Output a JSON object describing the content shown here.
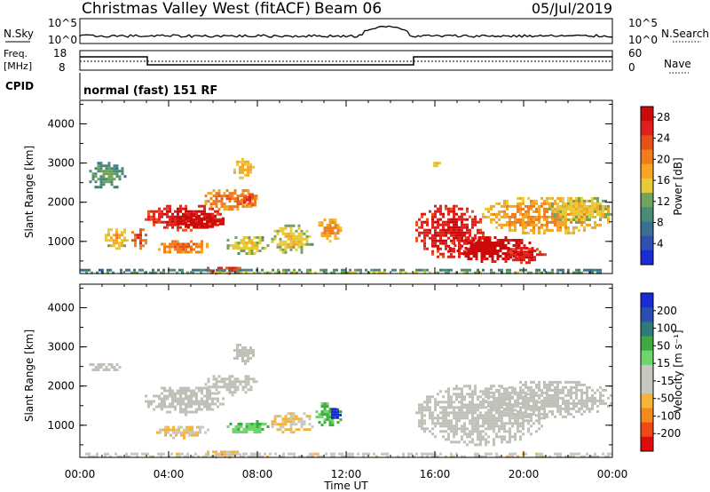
{
  "header": {
    "station": "Christmas Valley West (fitACF)",
    "beam": "Beam 06",
    "date": "05/Jul/2019"
  },
  "strips": {
    "nsky": {
      "label": "N.Sky",
      "ticks": [
        "10^5",
        "10^0"
      ]
    },
    "nsearch": {
      "label": "N.Search",
      "ticks": [
        "10^5",
        "10^0"
      ]
    },
    "freq": {
      "label_line1": "Freq.",
      "label_line2": "[MHz]",
      "ticks": [
        "18",
        "8"
      ]
    },
    "nave": {
      "label": "Nave",
      "ticks": [
        "60",
        "0"
      ]
    },
    "cpid": {
      "label": "CPID",
      "value": "normal (fast) 151 RF"
    }
  },
  "colors": {
    "power_scale": [
      "#1a2bd6",
      "#2f4fb3",
      "#3c6f94",
      "#4a8a78",
      "#6fa35e",
      "#e7c93c",
      "#f5a623",
      "#f07d1c",
      "#e8501a",
      "#e0201a",
      "#cc0a0a"
    ],
    "velocity_scale": [
      "#e00a0a",
      "#f04a14",
      "#f58a1a",
      "#f4b43a",
      "#c8c8c0",
      "#c8c8c0",
      "#6cd66c",
      "#3faa3f",
      "#2f7a7a",
      "#2b4fb0",
      "#1a2bd6"
    ],
    "ground_scatter": "#c0c0b8"
  },
  "chart_data": [
    {
      "type": "heatmap",
      "name": "power",
      "ylabel": "Slant Range [km]",
      "x_ticks": [
        "00:00",
        "04:00",
        "08:00",
        "12:00",
        "16:00",
        "20:00",
        "00:00"
      ],
      "y_ticks": [
        "1000",
        "2000",
        "3000",
        "4000"
      ],
      "xlim_hours": [
        0,
        24
      ],
      "ylim_km": [
        180,
        4600
      ],
      "colorbar": {
        "label": "Power [dB]",
        "ticks": [
          "4",
          "8",
          "12",
          "16",
          "20",
          "24",
          "28"
        ],
        "range": [
          0,
          30
        ]
      },
      "regions": [
        {
          "t0": 0.3,
          "t1": 2.0,
          "r0": 2350,
          "r1": 3100,
          "value": 8
        },
        {
          "t0": 1.0,
          "t1": 2.2,
          "r0": 800,
          "r1": 1400,
          "value": 14
        },
        {
          "t0": 2.2,
          "t1": 3.0,
          "r0": 850,
          "r1": 1400,
          "value": 20
        },
        {
          "t0": 2.8,
          "t1": 6.5,
          "r0": 1300,
          "r1": 2000,
          "value": 24
        },
        {
          "t0": 4.0,
          "t1": 6.6,
          "r0": 1350,
          "r1": 1750,
          "value": 28
        },
        {
          "t0": 3.4,
          "t1": 5.8,
          "r0": 700,
          "r1": 1100,
          "value": 18
        },
        {
          "t0": 5.5,
          "t1": 8.0,
          "r0": 1800,
          "r1": 2400,
          "value": 18
        },
        {
          "t0": 6.8,
          "t1": 7.8,
          "r0": 2600,
          "r1": 3200,
          "value": 14
        },
        {
          "t0": 7.0,
          "t1": 8.0,
          "r0": 1900,
          "r1": 2300,
          "value": 20
        },
        {
          "t0": 6.5,
          "t1": 8.5,
          "r0": 700,
          "r1": 1200,
          "value": 12
        },
        {
          "t0": 8.5,
          "t1": 10.5,
          "r0": 700,
          "r1": 1500,
          "value": 12
        },
        {
          "t0": 10.5,
          "t1": 11.8,
          "r0": 1000,
          "r1": 1650,
          "value": 16
        },
        {
          "t0": 5.6,
          "t1": 7.3,
          "r0": 200,
          "r1": 420,
          "value": 22
        },
        {
          "t0": 15.0,
          "t1": 18.2,
          "r0": 600,
          "r1": 2000,
          "value": 24
        },
        {
          "t0": 16.5,
          "t1": 20.5,
          "r0": 500,
          "r1": 1200,
          "value": 26
        },
        {
          "t0": 19.0,
          "t1": 21.0,
          "r0": 450,
          "r1": 900,
          "value": 24
        },
        {
          "t0": 18.0,
          "t1": 24.0,
          "r0": 1200,
          "r1": 2200,
          "value": 16
        },
        {
          "t0": 21.0,
          "t1": 24.0,
          "r0": 1500,
          "r1": 2200,
          "value": 12
        },
        {
          "t0": 15.8,
          "t1": 16.4,
          "r0": 2900,
          "r1": 3100,
          "value": 12
        },
        {
          "t0": 0.0,
          "t1": 24.0,
          "r0": 180,
          "r1": 300,
          "value": 10
        }
      ]
    },
    {
      "type": "heatmap",
      "name": "velocity",
      "ylabel": "Slant Range [km]",
      "xlabel": "Time UT",
      "x_ticks": [
        "00:00",
        "04:00",
        "08:00",
        "12:00",
        "16:00",
        "20:00",
        "00:00"
      ],
      "y_ticks": [
        "1000",
        "2000",
        "3000",
        "4000"
      ],
      "xlim_hours": [
        0,
        24
      ],
      "ylim_km": [
        180,
        4600
      ],
      "colorbar": {
        "label": "Velocity [m s⁻¹]",
        "ticks": [
          "200",
          "100",
          "50",
          "15",
          "-15",
          "-50",
          "-100",
          "-200"
        ],
        "range": [
          -250,
          250
        ]
      },
      "regions": [
        {
          "t0": 2.8,
          "t1": 6.5,
          "r0": 1300,
          "r1": 2050,
          "value": 0,
          "ground": true
        },
        {
          "t0": 0.3,
          "t1": 2.0,
          "r0": 2400,
          "r1": 2650,
          "value": 0,
          "ground": true
        },
        {
          "t0": 6.8,
          "t1": 7.8,
          "r0": 2600,
          "r1": 3150,
          "value": 0,
          "ground": true
        },
        {
          "t0": 5.5,
          "t1": 8.0,
          "r0": 1800,
          "r1": 2350,
          "value": 0,
          "ground": true
        },
        {
          "t0": 3.2,
          "t1": 5.8,
          "r0": 700,
          "r1": 1050,
          "value": -60
        },
        {
          "t0": 8.5,
          "t1": 10.5,
          "r0": 800,
          "r1": 1400,
          "value": -70
        },
        {
          "t0": 6.5,
          "t1": 8.5,
          "r0": 800,
          "r1": 1200,
          "value": 60
        },
        {
          "t0": 10.5,
          "t1": 11.8,
          "r0": 1000,
          "r1": 1650,
          "value": 70
        },
        {
          "t0": 11.2,
          "t1": 11.7,
          "r0": 1100,
          "r1": 1500,
          "value": 220
        },
        {
          "t0": 5.6,
          "t1": 7.3,
          "r0": 200,
          "r1": 420,
          "value": -90
        },
        {
          "t0": 15.0,
          "t1": 21.0,
          "r0": 500,
          "r1": 2100,
          "value": 0,
          "ground": true
        },
        {
          "t0": 18.0,
          "t1": 24.0,
          "r0": 1200,
          "r1": 2200,
          "value": 0,
          "ground": true
        },
        {
          "t0": 0.0,
          "t1": 24.0,
          "r0": 180,
          "r1": 300,
          "value": -40
        }
      ]
    }
  ],
  "axis": {
    "xlabel": "Time UT"
  }
}
